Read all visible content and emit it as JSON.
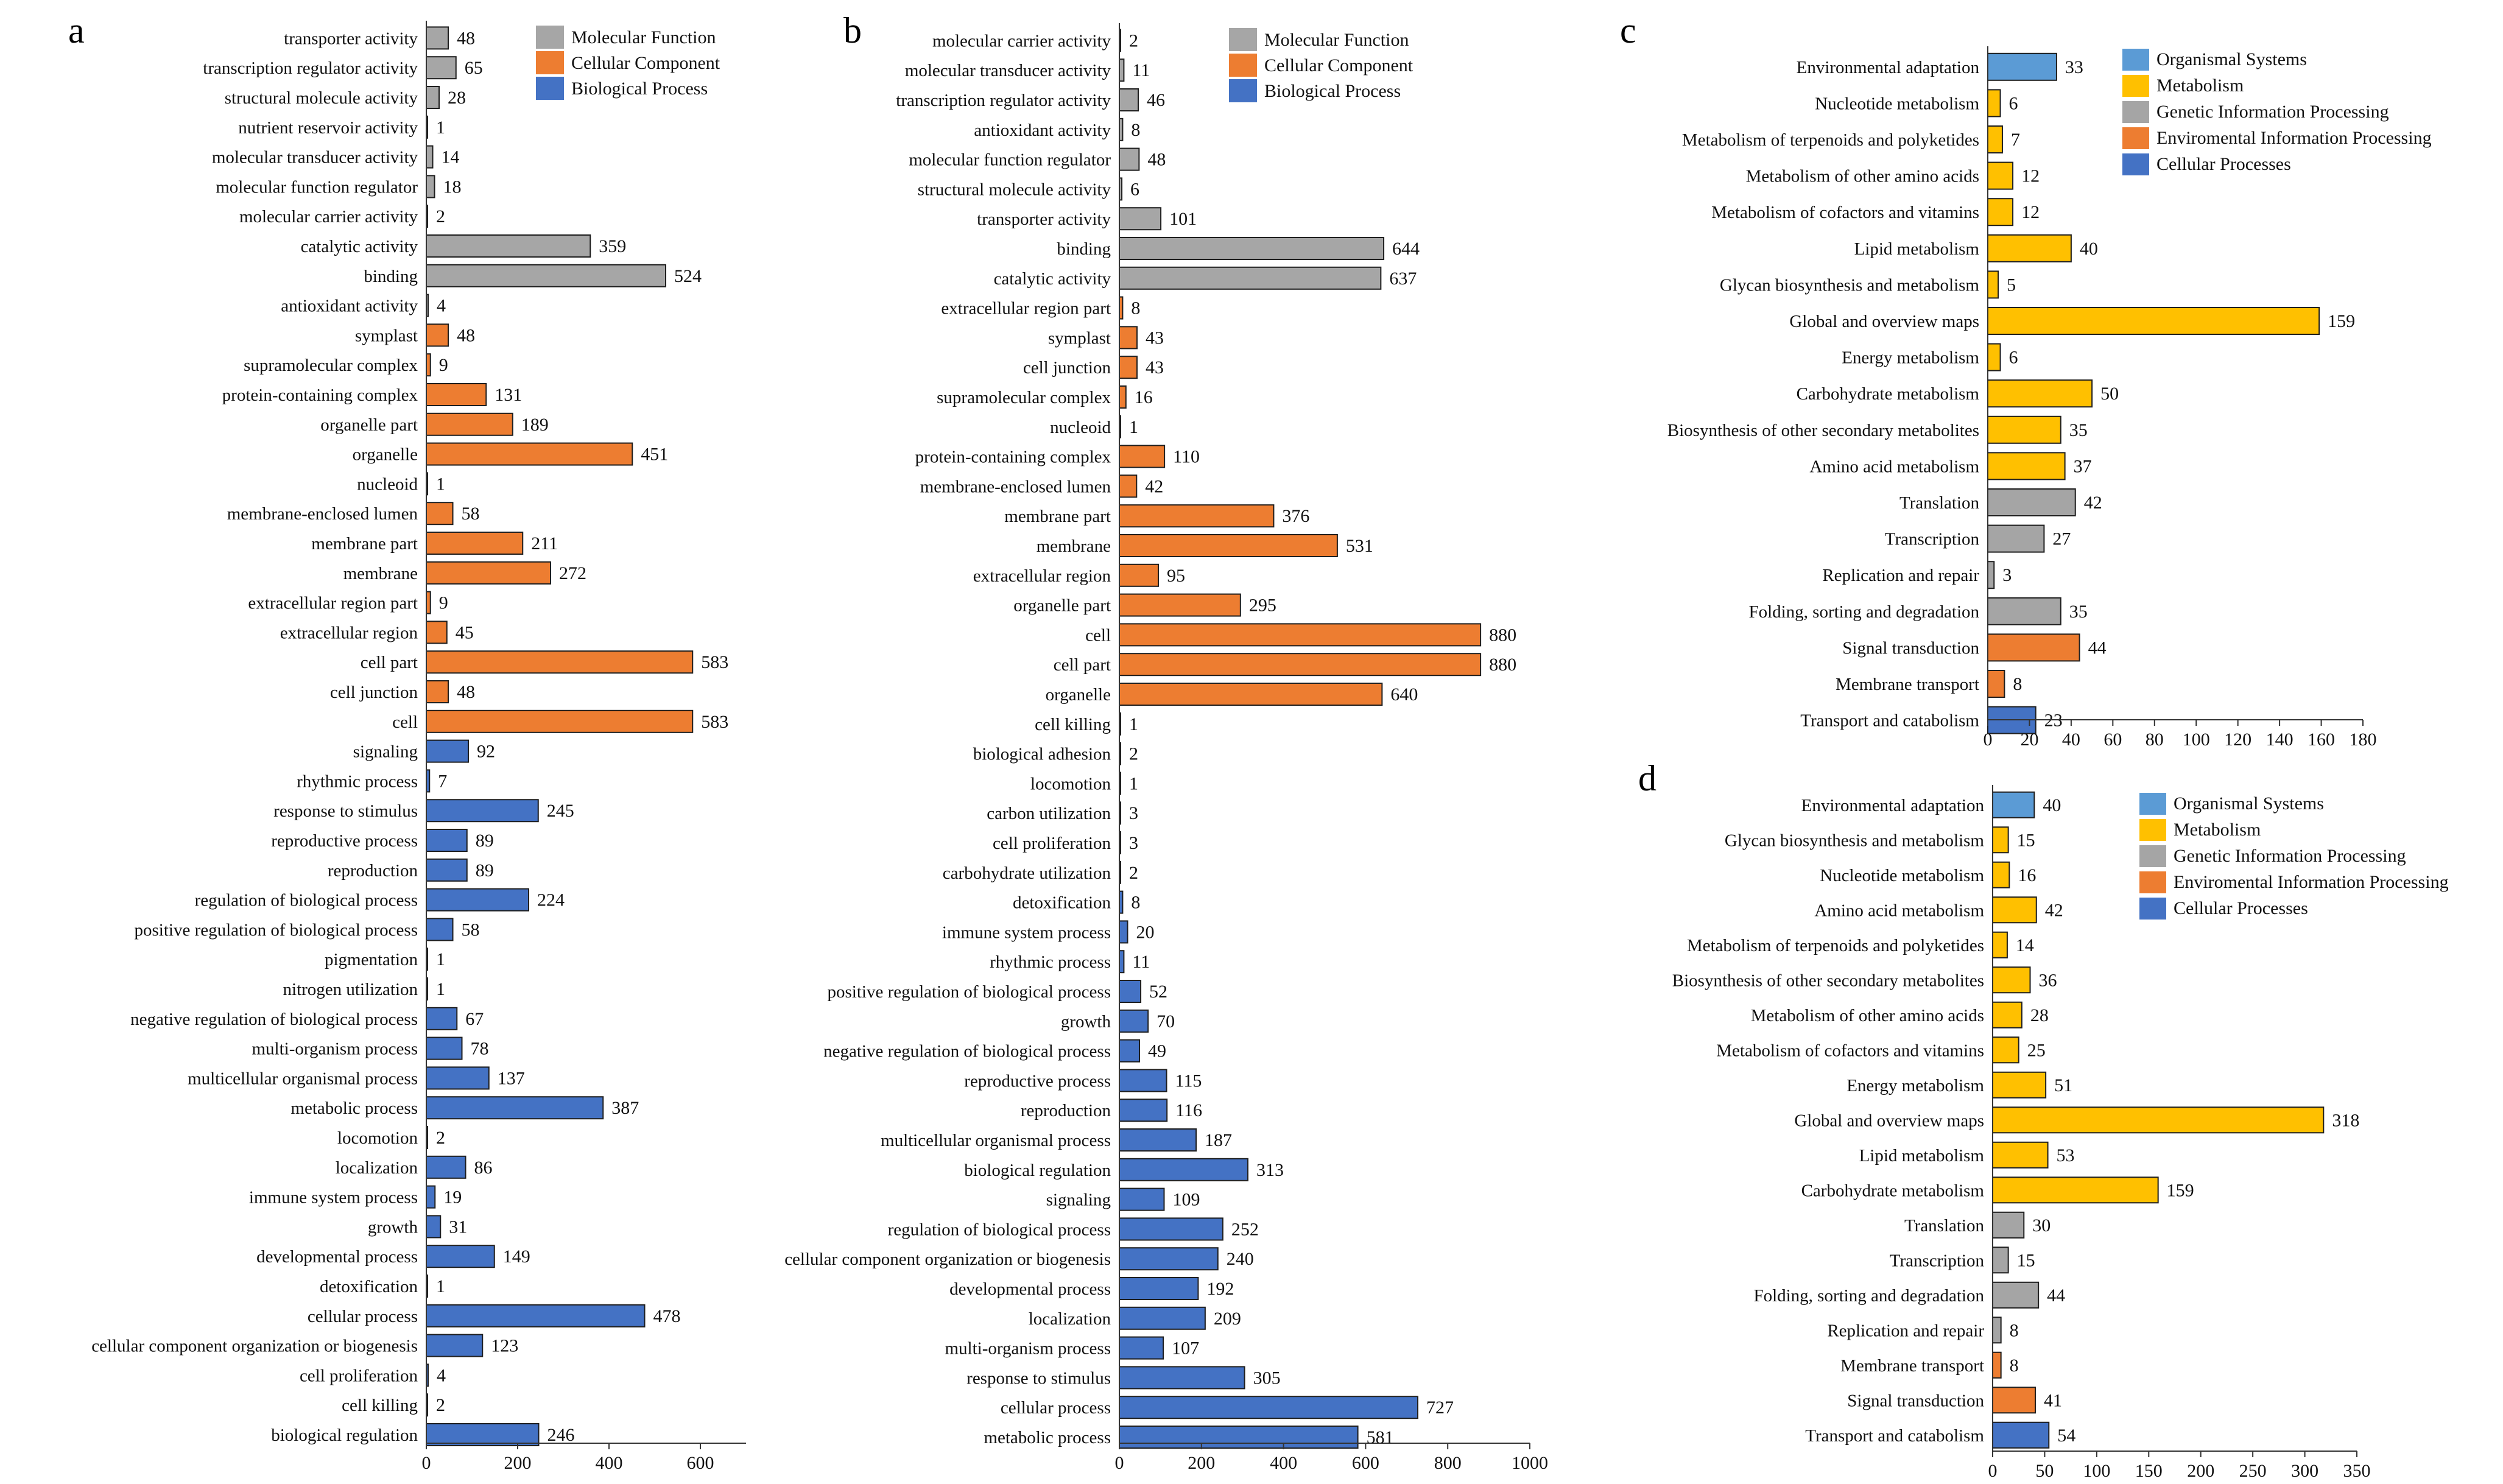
{
  "colors": {
    "Molecular Function": "#a6a6a6",
    "Cellular Component": "#ed7d31",
    "Biological Process": "#4472c4",
    "Organismal Systems": "#5b9bd5",
    "Metabolism": "#ffc000",
    "Genetic Information Processing": "#a5a5a5",
    "Enviromental Information Processing": "#ed7d31",
    "Cellular Processes": "#4472c4"
  },
  "chart_data": [
    {
      "panel": "a",
      "type": "bar",
      "orientation": "horizontal",
      "xlim": [
        0,
        700
      ],
      "xticks": [
        0,
        200,
        400,
        600
      ],
      "legend": [
        "Molecular Function",
        "Cellular Component",
        "Biological Process"
      ],
      "legend_position": "top-right",
      "bars": [
        {
          "label": "transporter activity",
          "value": 48,
          "group": "Molecular Function"
        },
        {
          "label": "transcription regulator activity",
          "value": 65,
          "group": "Molecular Function"
        },
        {
          "label": "structural molecule activity",
          "value": 28,
          "group": "Molecular Function"
        },
        {
          "label": "nutrient reservoir activity",
          "value": 1,
          "group": "Molecular Function"
        },
        {
          "label": "molecular transducer activity",
          "value": 14,
          "group": "Molecular Function"
        },
        {
          "label": "molecular function regulator",
          "value": 18,
          "group": "Molecular Function"
        },
        {
          "label": "molecular carrier activity",
          "value": 2,
          "group": "Molecular Function"
        },
        {
          "label": "catalytic activity",
          "value": 359,
          "group": "Molecular Function"
        },
        {
          "label": "binding",
          "value": 524,
          "group": "Molecular Function"
        },
        {
          "label": "antioxidant activity",
          "value": 4,
          "group": "Molecular Function"
        },
        {
          "label": "symplast",
          "value": 48,
          "group": "Cellular Component"
        },
        {
          "label": "supramolecular complex",
          "value": 9,
          "group": "Cellular Component"
        },
        {
          "label": "protein-containing complex",
          "value": 131,
          "group": "Cellular Component"
        },
        {
          "label": "organelle part",
          "value": 189,
          "group": "Cellular Component"
        },
        {
          "label": "organelle",
          "value": 451,
          "group": "Cellular Component"
        },
        {
          "label": "nucleoid",
          "value": 1,
          "group": "Cellular Component"
        },
        {
          "label": "membrane-enclosed lumen",
          "value": 58,
          "group": "Cellular Component"
        },
        {
          "label": "membrane part",
          "value": 211,
          "group": "Cellular Component"
        },
        {
          "label": "membrane",
          "value": 272,
          "group": "Cellular Component"
        },
        {
          "label": "extracellular region part",
          "value": 9,
          "group": "Cellular Component"
        },
        {
          "label": "extracellular region",
          "value": 45,
          "group": "Cellular Component"
        },
        {
          "label": "cell part",
          "value": 583,
          "group": "Cellular Component"
        },
        {
          "label": "cell junction",
          "value": 48,
          "group": "Cellular Component"
        },
        {
          "label": "cell",
          "value": 583,
          "group": "Cellular Component"
        },
        {
          "label": "signaling",
          "value": 92,
          "group": "Biological Process"
        },
        {
          "label": "rhythmic process",
          "value": 7,
          "group": "Biological Process"
        },
        {
          "label": "response to stimulus",
          "value": 245,
          "group": "Biological Process"
        },
        {
          "label": "reproductive process",
          "value": 89,
          "group": "Biological Process"
        },
        {
          "label": "reproduction",
          "value": 89,
          "group": "Biological Process"
        },
        {
          "label": "regulation of biological process",
          "value": 224,
          "group": "Biological Process"
        },
        {
          "label": "positive regulation of biological process",
          "value": 58,
          "group": "Biological Process"
        },
        {
          "label": "pigmentation",
          "value": 1,
          "group": "Biological Process"
        },
        {
          "label": "nitrogen utilization",
          "value": 1,
          "group": "Biological Process"
        },
        {
          "label": "negative regulation of biological process",
          "value": 67,
          "group": "Biological Process"
        },
        {
          "label": "multi-organism process",
          "value": 78,
          "group": "Biological Process"
        },
        {
          "label": "multicellular organismal process",
          "value": 137,
          "group": "Biological Process"
        },
        {
          "label": "metabolic process",
          "value": 387,
          "group": "Biological Process"
        },
        {
          "label": "locomotion",
          "value": 2,
          "group": "Biological Process"
        },
        {
          "label": "localization",
          "value": 86,
          "group": "Biological Process"
        },
        {
          "label": "immune system process",
          "value": 19,
          "group": "Biological Process"
        },
        {
          "label": "growth",
          "value": 31,
          "group": "Biological Process"
        },
        {
          "label": "developmental process",
          "value": 149,
          "group": "Biological Process"
        },
        {
          "label": "detoxification",
          "value": 1,
          "group": "Biological Process"
        },
        {
          "label": "cellular process",
          "value": 478,
          "group": "Biological Process"
        },
        {
          "label": "cellular component organization or biogenesis",
          "value": 123,
          "group": "Biological Process"
        },
        {
          "label": "cell proliferation",
          "value": 4,
          "group": "Biological Process"
        },
        {
          "label": "cell killing",
          "value": 2,
          "group": "Biological Process"
        },
        {
          "label": "biological regulation",
          "value": 246,
          "group": "Biological Process"
        }
      ]
    },
    {
      "panel": "b",
      "type": "bar",
      "orientation": "horizontal",
      "xlim": [
        0,
        1000
      ],
      "xticks": [
        0,
        200,
        400,
        600,
        800,
        1000
      ],
      "legend": [
        "Molecular Function",
        "Cellular Component",
        "Biological Process"
      ],
      "legend_position": "top-right",
      "bars": [
        {
          "label": "molecular carrier activity",
          "value": 2,
          "group": "Molecular Function"
        },
        {
          "label": "molecular transducer activity",
          "value": 11,
          "group": "Molecular Function"
        },
        {
          "label": "transcription regulator activity",
          "value": 46,
          "group": "Molecular Function"
        },
        {
          "label": "antioxidant activity",
          "value": 8,
          "group": "Molecular Function"
        },
        {
          "label": "molecular function regulator",
          "value": 48,
          "group": "Molecular Function"
        },
        {
          "label": "structural molecule activity",
          "value": 6,
          "group": "Molecular Function"
        },
        {
          "label": "transporter activity",
          "value": 101,
          "group": "Molecular Function"
        },
        {
          "label": "binding",
          "value": 644,
          "group": "Molecular Function"
        },
        {
          "label": "catalytic activity",
          "value": 637,
          "group": "Molecular Function"
        },
        {
          "label": "extracellular region part",
          "value": 8,
          "group": "Cellular Component"
        },
        {
          "label": "symplast",
          "value": 43,
          "group": "Cellular Component"
        },
        {
          "label": "cell junction",
          "value": 43,
          "group": "Cellular Component"
        },
        {
          "label": "supramolecular complex",
          "value": 16,
          "group": "Cellular Component"
        },
        {
          "label": "nucleoid",
          "value": 1,
          "group": "Cellular Component"
        },
        {
          "label": "protein-containing complex",
          "value": 110,
          "group": "Cellular Component"
        },
        {
          "label": "membrane-enclosed lumen",
          "value": 42,
          "group": "Cellular Component"
        },
        {
          "label": "membrane part",
          "value": 376,
          "group": "Cellular Component"
        },
        {
          "label": "membrane",
          "value": 531,
          "group": "Cellular Component"
        },
        {
          "label": "extracellular region",
          "value": 95,
          "group": "Cellular Component"
        },
        {
          "label": "organelle part",
          "value": 295,
          "group": "Cellular Component"
        },
        {
          "label": "cell",
          "value": 880,
          "group": "Cellular Component"
        },
        {
          "label": "cell part",
          "value": 880,
          "group": "Cellular Component"
        },
        {
          "label": "organelle",
          "value": 640,
          "group": "Cellular Component"
        },
        {
          "label": "cell killing",
          "value": 1,
          "group": "Biological Process"
        },
        {
          "label": "biological adhesion",
          "value": 2,
          "group": "Biological Process"
        },
        {
          "label": "locomotion",
          "value": 1,
          "group": "Biological Process"
        },
        {
          "label": "carbon utilization",
          "value": 3,
          "group": "Biological Process"
        },
        {
          "label": "cell proliferation",
          "value": 3,
          "group": "Biological Process"
        },
        {
          "label": "carbohydrate utilization",
          "value": 2,
          "group": "Biological Process"
        },
        {
          "label": "detoxification",
          "value": 8,
          "group": "Biological Process"
        },
        {
          "label": "immune system process",
          "value": 20,
          "group": "Biological Process"
        },
        {
          "label": "rhythmic process",
          "value": 11,
          "group": "Biological Process"
        },
        {
          "label": "positive regulation of biological process",
          "value": 52,
          "group": "Biological Process"
        },
        {
          "label": "growth",
          "value": 70,
          "group": "Biological Process"
        },
        {
          "label": "negative regulation of biological process",
          "value": 49,
          "group": "Biological Process"
        },
        {
          "label": "reproductive process",
          "value": 115,
          "group": "Biological Process"
        },
        {
          "label": "reproduction",
          "value": 116,
          "group": "Biological Process"
        },
        {
          "label": "multicellular organismal process",
          "value": 187,
          "group": "Biological Process"
        },
        {
          "label": "biological regulation",
          "value": 313,
          "group": "Biological Process"
        },
        {
          "label": "signaling",
          "value": 109,
          "group": "Biological Process"
        },
        {
          "label": "regulation of biological process",
          "value": 252,
          "group": "Biological Process"
        },
        {
          "label": "cellular component organization or biogenesis",
          "value": 240,
          "group": "Biological Process"
        },
        {
          "label": "developmental process",
          "value": 192,
          "group": "Biological Process"
        },
        {
          "label": "localization",
          "value": 209,
          "group": "Biological Process"
        },
        {
          "label": "multi-organism process",
          "value": 107,
          "group": "Biological Process"
        },
        {
          "label": "response to stimulus",
          "value": 305,
          "group": "Biological Process"
        },
        {
          "label": "cellular process",
          "value": 727,
          "group": "Biological Process"
        },
        {
          "label": "metabolic process",
          "value": 581,
          "group": "Biological Process"
        }
      ]
    },
    {
      "panel": "c",
      "type": "bar",
      "orientation": "horizontal",
      "xlim": [
        0,
        180
      ],
      "xticks": [
        0,
        20,
        40,
        60,
        80,
        100,
        120,
        140,
        160,
        180
      ],
      "legend": [
        "Organismal Systems",
        "Metabolism",
        "Genetic Information Processing",
        "Enviromental Information Processing",
        "Cellular Processes"
      ],
      "legend_position": "top-right",
      "bars": [
        {
          "label": "Environmental adaptation",
          "value": 33,
          "group": "Organismal Systems"
        },
        {
          "label": "Nucleotide metabolism",
          "value": 6,
          "group": "Metabolism"
        },
        {
          "label": "Metabolism of terpenoids and polyketides",
          "value": 7,
          "group": "Metabolism"
        },
        {
          "label": "Metabolism of other amino acids",
          "value": 12,
          "group": "Metabolism"
        },
        {
          "label": "Metabolism of cofactors and vitamins",
          "value": 12,
          "group": "Metabolism"
        },
        {
          "label": "Lipid metabolism",
          "value": 40,
          "group": "Metabolism"
        },
        {
          "label": "Glycan biosynthesis and metabolism",
          "value": 5,
          "group": "Metabolism"
        },
        {
          "label": "Global and overview maps",
          "value": 159,
          "group": "Metabolism"
        },
        {
          "label": "Energy metabolism",
          "value": 6,
          "group": "Metabolism"
        },
        {
          "label": "Carbohydrate metabolism",
          "value": 50,
          "group": "Metabolism"
        },
        {
          "label": "Biosynthesis of other secondary metabolites",
          "value": 35,
          "group": "Metabolism"
        },
        {
          "label": "Amino acid metabolism",
          "value": 37,
          "group": "Metabolism"
        },
        {
          "label": "Translation",
          "value": 42,
          "group": "Genetic Information Processing"
        },
        {
          "label": "Transcription",
          "value": 27,
          "group": "Genetic Information Processing"
        },
        {
          "label": "Replication and repair",
          "value": 3,
          "group": "Genetic Information Processing"
        },
        {
          "label": "Folding, sorting and degradation",
          "value": 35,
          "group": "Genetic Information Processing"
        },
        {
          "label": "Signal transduction",
          "value": 44,
          "group": "Enviromental Information Processing"
        },
        {
          "label": "Membrane transport",
          "value": 8,
          "group": "Enviromental Information Processing"
        },
        {
          "label": "Transport and catabolism",
          "value": 23,
          "group": "Cellular Processes"
        }
      ]
    },
    {
      "panel": "d",
      "type": "bar",
      "orientation": "horizontal",
      "xlim": [
        0,
        350
      ],
      "xticks": [
        0,
        50,
        100,
        150,
        200,
        250,
        300,
        350
      ],
      "legend": [
        "Organismal Systems",
        "Metabolism",
        "Genetic Information Processing",
        "Enviromental Information Processing",
        "Cellular Processes"
      ],
      "legend_position": "top-right",
      "bars": [
        {
          "label": "Environmental adaptation",
          "value": 40,
          "group": "Organismal Systems"
        },
        {
          "label": "Glycan biosynthesis and metabolism",
          "value": 15,
          "group": "Metabolism"
        },
        {
          "label": "Nucleotide metabolism",
          "value": 16,
          "group": "Metabolism"
        },
        {
          "label": "Amino acid metabolism",
          "value": 42,
          "group": "Metabolism"
        },
        {
          "label": "Metabolism of terpenoids and polyketides",
          "value": 14,
          "group": "Metabolism"
        },
        {
          "label": "Biosynthesis of other secondary metabolites",
          "value": 36,
          "group": "Metabolism"
        },
        {
          "label": "Metabolism of other amino acids",
          "value": 28,
          "group": "Metabolism"
        },
        {
          "label": "Metabolism of cofactors and vitamins",
          "value": 25,
          "group": "Metabolism"
        },
        {
          "label": "Energy metabolism",
          "value": 51,
          "group": "Metabolism"
        },
        {
          "label": "Global and overview maps",
          "value": 318,
          "group": "Metabolism"
        },
        {
          "label": "Lipid metabolism",
          "value": 53,
          "group": "Metabolism"
        },
        {
          "label": "Carbohydrate metabolism",
          "value": 159,
          "group": "Metabolism"
        },
        {
          "label": "Translation",
          "value": 30,
          "group": "Genetic Information Processing"
        },
        {
          "label": "Transcription",
          "value": 15,
          "group": "Genetic Information Processing"
        },
        {
          "label": "Folding, sorting and degradation",
          "value": 44,
          "group": "Genetic Information Processing"
        },
        {
          "label": "Replication and repair",
          "value": 8,
          "group": "Genetic Information Processing"
        },
        {
          "label": "Membrane transport",
          "value": 8,
          "group": "Enviromental Information Processing"
        },
        {
          "label": "Signal transduction",
          "value": 41,
          "group": "Enviromental Information Processing"
        },
        {
          "label": "Transport and catabolism",
          "value": 54,
          "group": "Cellular Processes"
        }
      ]
    }
  ]
}
